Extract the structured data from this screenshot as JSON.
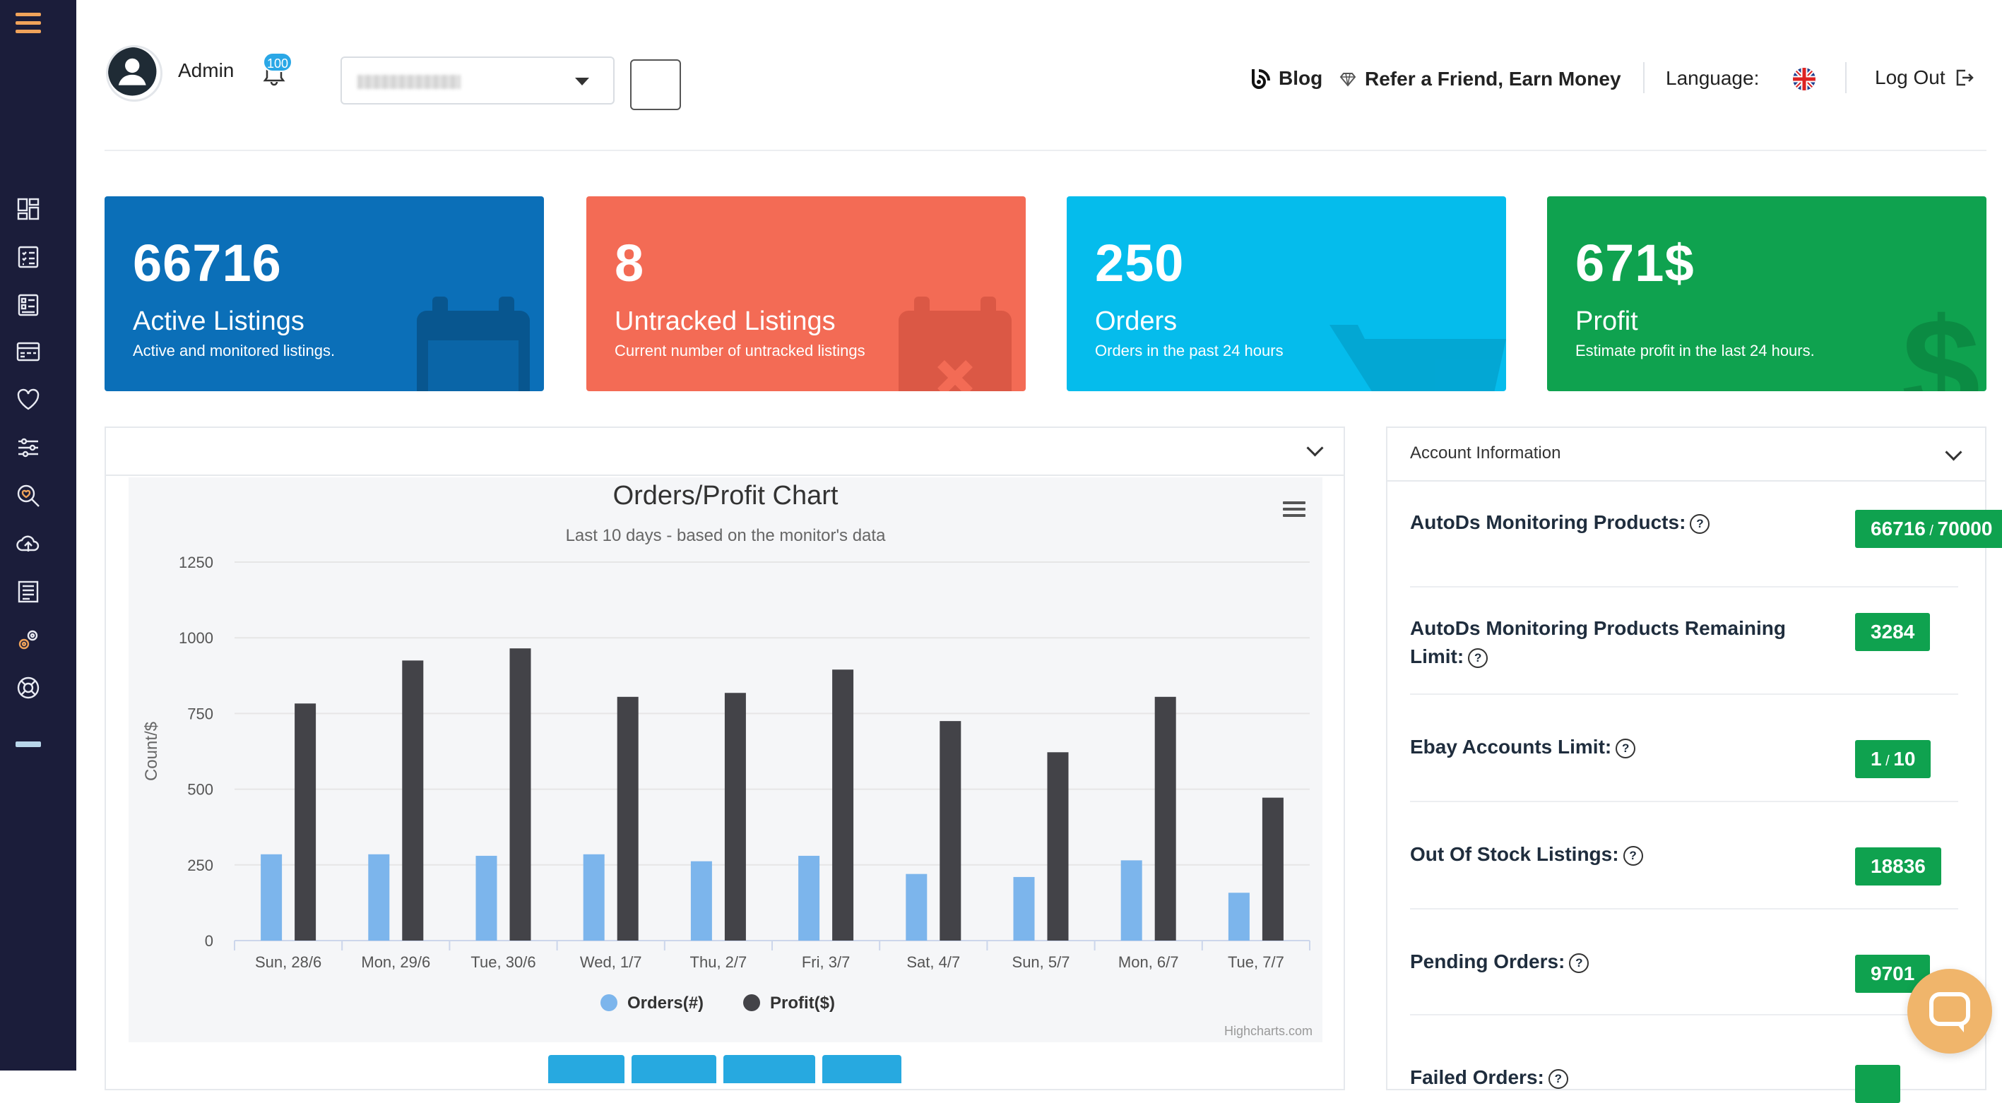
{
  "header": {
    "user_name": "Admin",
    "notification_count": "100",
    "blog_label": "Blog",
    "refer_label": "Refer a Friend, Earn Money",
    "language_label": "Language:",
    "logout_label": "Log Out"
  },
  "stats": [
    {
      "value": "66716",
      "title": "Active Listings",
      "desc": "Active and monitored listings.",
      "color": "#0b6fb8"
    },
    {
      "value": "8",
      "title": "Untracked Listings",
      "desc": "Current number of untracked listings",
      "color": "#f36b55"
    },
    {
      "value": "250",
      "title": "Orders",
      "desc": "Orders in the past 24 hours",
      "color": "#05bcec"
    },
    {
      "value": "671$",
      "title": "Profit",
      "desc": "Estimate profit in the last 24 hours.",
      "color": "#0fa24f"
    }
  ],
  "chart_data": {
    "type": "bar",
    "title": "Orders/Profit Chart",
    "subtitle": "Last 10 days - based on the monitor's data",
    "ylabel": "Count/$",
    "xlabel": "",
    "ylim": [
      0,
      1250
    ],
    "yticks": [
      0,
      250,
      500,
      750,
      1000,
      1250
    ],
    "categories": [
      "Sun, 28/6",
      "Mon, 29/6",
      "Tue, 30/6",
      "Wed, 1/7",
      "Thu, 2/7",
      "Fri, 3/7",
      "Sat, 4/7",
      "Sun, 5/7",
      "Mon, 6/7",
      "Tue, 7/7"
    ],
    "series": [
      {
        "name": "Orders(#)",
        "color": "#7cb5ec",
        "values": [
          285,
          285,
          280,
          285,
          262,
          280,
          220,
          210,
          265,
          158
        ]
      },
      {
        "name": "Profit($)",
        "color": "#434348",
        "values": [
          783,
          925,
          965,
          805,
          818,
          895,
          725,
          622,
          805,
          472
        ]
      }
    ],
    "legend_position": "bottom-center",
    "credits": "Highcharts.com",
    "grid": true
  },
  "account": {
    "title": "Account Information",
    "rows": [
      {
        "label": "AutoDs Monitoring Products:",
        "value": "66716",
        "limit": "70000"
      },
      {
        "label": "AutoDs Monitoring Products Remaining Limit:",
        "value": "3284"
      },
      {
        "label": "Ebay Accounts Limit:",
        "value": "1",
        "limit": "10"
      },
      {
        "label": "Out Of Stock Listings:",
        "value": "18836"
      },
      {
        "label": "Pending Orders:",
        "value": "9701"
      },
      {
        "label": "Failed Orders:",
        "value": ""
      }
    ]
  },
  "icons": {
    "sidebar": [
      "dashboard-icon",
      "listings-icon",
      "products-icon",
      "orders-icon",
      "favorites-icon",
      "settings-sliders-icon",
      "search-product-icon",
      "upload-icon",
      "reports-icon",
      "automation-icon",
      "support-icon"
    ]
  }
}
